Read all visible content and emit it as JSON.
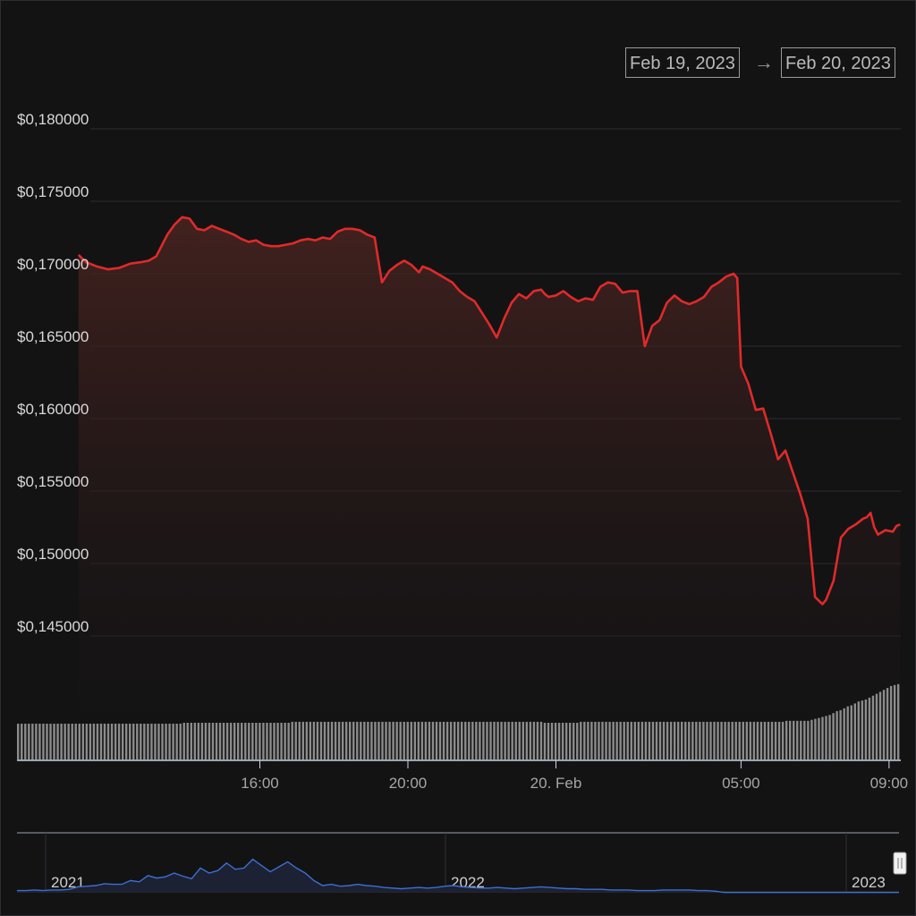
{
  "range_selector": {
    "from": "Feb 19, 2023",
    "arrow": "→",
    "to": "Feb 20, 2023"
  },
  "colors": {
    "background": "#131314",
    "price_line": "#e02a2a",
    "area_fill_top": "#4a2420",
    "grid": "#2e2e33",
    "volume_bars": "#8c8c8c",
    "navigator_line": "#3d6fd1"
  },
  "chart_data": {
    "type": "line",
    "title": "",
    "xlabel": "",
    "ylabel": "",
    "ylim": [
      0.142,
      0.181
    ],
    "y_ticks": [
      0.18,
      0.175,
      0.17,
      0.165,
      0.16,
      0.155,
      0.15,
      0.145
    ],
    "y_tick_labels": [
      "$0,180000",
      "$0,175000",
      "$0,170000",
      "$0,165000",
      "$0,160000",
      "$0,155000",
      "$0,150000",
      "$0,145000"
    ],
    "x_range_hours": [
      11.1,
      33.3
    ],
    "x_ticks": [
      16,
      20,
      24,
      29,
      33
    ],
    "x_tick_labels": [
      "16:00",
      "20:00",
      "20. Feb",
      "05:00",
      "09:00"
    ],
    "grid": true,
    "legend": "none",
    "series": [
      {
        "x": [
          11.1,
          11.3,
          11.6,
          11.9,
          12.2,
          12.5,
          12.8,
          13.0,
          13.2,
          13.5,
          13.7,
          13.9,
          14.1,
          14.3,
          14.5,
          14.7,
          14.9,
          15.1,
          15.3,
          15.5,
          15.7,
          15.9,
          16.1,
          16.3,
          16.5,
          16.7,
          16.9,
          17.1,
          17.3,
          17.5,
          17.7,
          17.9,
          18.1,
          18.3,
          18.5,
          18.7,
          18.9,
          19.1,
          19.3,
          19.5,
          19.7,
          19.9,
          20.1,
          20.3,
          20.4,
          20.6,
          20.8,
          21.0,
          21.2,
          21.4,
          21.6,
          21.8,
          22.0,
          22.2,
          22.4,
          22.6,
          22.8,
          23.0,
          23.2,
          23.4,
          23.6,
          23.7,
          23.8,
          24.0,
          24.2,
          24.4,
          24.6,
          24.8,
          25.0,
          25.2,
          25.4,
          25.6,
          25.8,
          26.0,
          26.2,
          26.4,
          26.6,
          26.8,
          27.0,
          27.2,
          27.4,
          27.6,
          27.8,
          28.0,
          28.2,
          28.4,
          28.6,
          28.8,
          28.9,
          29.0,
          29.2,
          29.4,
          29.6,
          29.8,
          30.0,
          30.2,
          30.4,
          30.6,
          30.8,
          31.0,
          31.2,
          31.3,
          31.5,
          31.7,
          31.9,
          32.1,
          32.3,
          32.4,
          32.5,
          32.6,
          32.7,
          32.9,
          33.1,
          33.2,
          33.3
        ],
        "y": [
          0.1713,
          0.1708,
          0.1705,
          0.1703,
          0.1704,
          0.1707,
          0.1708,
          0.1709,
          0.1712,
          0.1727,
          0.1734,
          0.1739,
          0.1738,
          0.1731,
          0.173,
          0.1733,
          0.1731,
          0.1729,
          0.1727,
          0.1724,
          0.1722,
          0.1723,
          0.172,
          0.1719,
          0.1719,
          0.172,
          0.1721,
          0.1723,
          0.1724,
          0.1723,
          0.1725,
          0.1724,
          0.1729,
          0.1731,
          0.1731,
          0.173,
          0.1727,
          0.1725,
          0.1694,
          0.1702,
          0.1706,
          0.1709,
          0.1706,
          0.1701,
          0.1705,
          0.1703,
          0.17,
          0.1697,
          0.1694,
          0.1688,
          0.1684,
          0.1681,
          0.1673,
          0.1665,
          0.1656,
          0.1669,
          0.168,
          0.1686,
          0.1683,
          0.1688,
          0.1689,
          0.1686,
          0.1684,
          0.1685,
          0.1688,
          0.1684,
          0.1681,
          0.1683,
          0.1682,
          0.1691,
          0.1694,
          0.1693,
          0.1687,
          0.1688,
          0.1688,
          0.165,
          0.1664,
          0.1668,
          0.168,
          0.1685,
          0.1681,
          0.1679,
          0.1681,
          0.1684,
          0.1691,
          0.1694,
          0.1698,
          0.17,
          0.1697,
          0.1636,
          0.1624,
          0.1606,
          0.1607,
          0.159,
          0.1572,
          0.1578,
          0.1563,
          0.1548,
          0.1531,
          0.1477,
          0.1472,
          0.1475,
          0.1488,
          0.1518,
          0.1524,
          0.1527,
          0.1531,
          0.1532,
          0.1535,
          0.1525,
          0.152,
          0.1523,
          0.1522,
          0.1526,
          0.1527
        ]
      }
    ],
    "volume": {
      "levels": [
        0.37,
        0.37,
        0.37,
        0.37,
        0.37,
        0.37,
        0.37,
        0.37,
        0.37,
        0.37,
        0.37,
        0.37,
        0.37,
        0.37,
        0.37,
        0.37,
        0.37,
        0.37,
        0.37,
        0.37,
        0.37,
        0.37,
        0.37,
        0.37,
        0.37,
        0.37,
        0.37,
        0.37,
        0.37,
        0.37,
        0.37,
        0.37,
        0.37,
        0.37,
        0.37,
        0.37,
        0.37,
        0.37,
        0.37,
        0.37,
        0.37,
        0.37,
        0.37,
        0.37,
        0.37,
        0.37,
        0.38,
        0.38,
        0.38,
        0.38,
        0.38,
        0.38,
        0.38,
        0.38,
        0.38,
        0.38,
        0.38,
        0.38,
        0.38,
        0.38,
        0.38,
        0.38,
        0.38,
        0.38,
        0.38,
        0.38,
        0.38,
        0.38,
        0.38,
        0.38,
        0.38,
        0.38,
        0.38,
        0.38,
        0.38,
        0.38,
        0.39,
        0.39,
        0.39,
        0.39,
        0.39,
        0.39,
        0.39,
        0.39,
        0.39,
        0.39,
        0.39,
        0.39,
        0.39,
        0.39,
        0.39,
        0.39,
        0.39,
        0.39,
        0.39,
        0.39,
        0.39,
        0.39,
        0.39,
        0.39,
        0.39,
        0.39,
        0.39,
        0.39,
        0.39,
        0.39,
        0.39,
        0.39,
        0.39,
        0.39,
        0.39,
        0.39,
        0.39,
        0.39,
        0.39,
        0.39,
        0.39,
        0.39,
        0.39,
        0.39,
        0.39,
        0.39,
        0.39,
        0.39,
        0.39,
        0.39,
        0.39,
        0.39,
        0.39,
        0.39,
        0.39,
        0.39,
        0.39,
        0.39,
        0.39,
        0.39,
        0.39,
        0.39,
        0.39,
        0.39,
        0.39,
        0.39,
        0.39,
        0.39,
        0.39,
        0.39,
        0.38,
        0.38,
        0.38,
        0.38,
        0.38,
        0.38,
        0.38,
        0.38,
        0.38,
        0.38,
        0.39,
        0.39,
        0.39,
        0.39,
        0.39,
        0.39,
        0.39,
        0.39,
        0.39,
        0.39,
        0.39,
        0.39,
        0.39,
        0.39,
        0.39,
        0.39,
        0.39,
        0.39,
        0.39,
        0.39,
        0.39,
        0.39,
        0.39,
        0.39,
        0.39,
        0.39,
        0.39,
        0.39,
        0.39,
        0.39,
        0.39,
        0.39,
        0.39,
        0.39,
        0.39,
        0.39,
        0.39,
        0.39,
        0.39,
        0.39,
        0.39,
        0.39,
        0.39,
        0.39,
        0.39,
        0.39,
        0.39,
        0.39,
        0.39,
        0.39,
        0.39,
        0.39,
        0.39,
        0.39,
        0.39,
        0.39,
        0.39,
        0.4,
        0.4,
        0.4,
        0.4,
        0.4,
        0.4,
        0.4,
        0.41,
        0.42,
        0.43,
        0.44,
        0.45,
        0.46,
        0.48,
        0.5,
        0.51,
        0.53,
        0.55,
        0.56,
        0.58,
        0.6,
        0.61,
        0.62,
        0.64,
        0.66,
        0.68,
        0.7,
        0.72,
        0.74,
        0.76,
        0.77,
        0.78
      ]
    }
  },
  "navigator": {
    "labels": [
      "2021",
      "2022",
      "2023"
    ],
    "values": [
      0.02,
      0.02,
      0.03,
      0.02,
      0.03,
      0.03,
      0.04,
      0.08,
      0.09,
      0.1,
      0.13,
      0.12,
      0.12,
      0.18,
      0.16,
      0.26,
      0.22,
      0.24,
      0.3,
      0.25,
      0.21,
      0.38,
      0.3,
      0.34,
      0.46,
      0.36,
      0.38,
      0.52,
      0.42,
      0.32,
      0.4,
      0.48,
      0.38,
      0.3,
      0.18,
      0.1,
      0.12,
      0.09,
      0.1,
      0.12,
      0.1,
      0.09,
      0.07,
      0.06,
      0.05,
      0.06,
      0.07,
      0.06,
      0.07,
      0.09,
      0.1,
      0.08,
      0.07,
      0.06,
      0.06,
      0.07,
      0.06,
      0.05,
      0.06,
      0.07,
      0.08,
      0.07,
      0.06,
      0.05,
      0.05,
      0.04,
      0.04,
      0.04,
      0.03,
      0.03,
      0.03,
      0.02,
      0.02,
      0.02,
      0.03,
      0.03,
      0.03,
      0.03,
      0.02,
      0.02,
      0.01,
      -0.01,
      -0.01,
      -0.01,
      -0.01,
      -0.01,
      -0.01,
      -0.01,
      -0.01,
      -0.01,
      -0.01,
      -0.01,
      -0.01,
      -0.01,
      -0.01,
      -0.01,
      -0.01,
      -0.01,
      -0.01,
      -0.01,
      -0.01,
      -0.01
    ]
  }
}
